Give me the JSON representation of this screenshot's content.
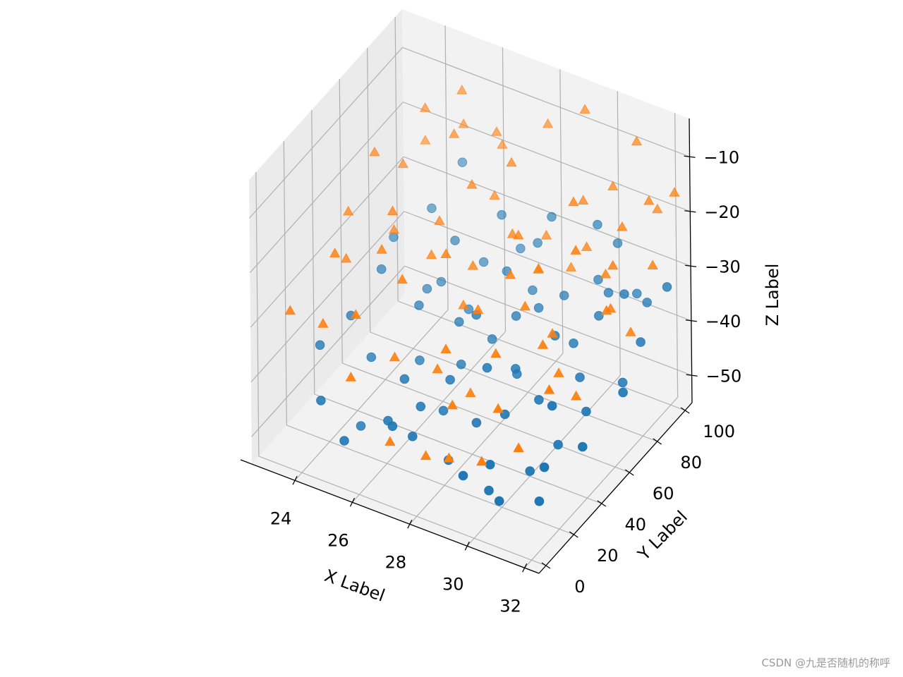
{
  "chart_data": {
    "type": "scatter",
    "projection": "3d",
    "xlabel": "X Label",
    "ylabel": "Y Label",
    "zlabel": "Z Label",
    "xlim": [
      22.5,
      32.5
    ],
    "ylim": [
      -5,
      105
    ],
    "zlim": [
      -55,
      -3
    ],
    "xticks": [
      24,
      26,
      28,
      30,
      32
    ],
    "yticks": [
      0,
      20,
      40,
      60,
      80,
      100
    ],
    "zticks": [
      -10,
      -20,
      -30,
      -40,
      -50
    ],
    "xtick_labels": [
      "24",
      "26",
      "28",
      "30",
      "32"
    ],
    "ytick_labels": [
      "0",
      "20",
      "40",
      "60",
      "80",
      "100"
    ],
    "ztick_labels": [
      "−10",
      "−20",
      "−30",
      "−40",
      "−50"
    ],
    "grid": true,
    "series": [
      {
        "marker": "circle",
        "color": "#1f77b4",
        "points": [
          [
            23.3,
            28,
            -41
          ],
          [
            24.1,
            12,
            -45
          ],
          [
            24.4,
            42,
            -45
          ],
          [
            25.9,
            35,
            -44
          ],
          [
            25.6,
            52,
            -46
          ],
          [
            26.3,
            18,
            -47
          ],
          [
            26.7,
            30,
            -46
          ],
          [
            26.9,
            55,
            -45
          ],
          [
            27.1,
            43,
            -44
          ],
          [
            27.5,
            65,
            -42
          ],
          [
            26.0,
            90,
            -38
          ],
          [
            24.9,
            72,
            -40
          ],
          [
            23.8,
            40,
            -38
          ],
          [
            25.1,
            78,
            -40
          ],
          [
            26.5,
            62,
            -40
          ],
          [
            27.8,
            88,
            -39
          ],
          [
            28.1,
            70,
            -38
          ],
          [
            28.8,
            55,
            -42
          ],
          [
            29.2,
            39,
            -45
          ],
          [
            30.0,
            47,
            -43
          ],
          [
            29.6,
            20,
            -48
          ],
          [
            30.3,
            12,
            -51
          ],
          [
            30.8,
            60,
            -41
          ],
          [
            31.2,
            26,
            -47
          ],
          [
            31.6,
            14,
            -49
          ],
          [
            32.1,
            35,
            -44
          ],
          [
            31.9,
            68,
            -42
          ],
          [
            32.4,
            58,
            -40
          ],
          [
            30.5,
            80,
            -36
          ],
          [
            29.9,
            92,
            -34
          ],
          [
            31.1,
            95,
            -35
          ],
          [
            29.0,
            86,
            -37
          ],
          [
            27.6,
            96,
            -33
          ],
          [
            26.9,
            98,
            -36
          ],
          [
            28.5,
            78,
            -38
          ],
          [
            30.1,
            70,
            -39
          ],
          [
            28.3,
            45,
            -40
          ],
          [
            27.0,
            40,
            -49
          ],
          [
            25.8,
            25,
            -49
          ],
          [
            24.7,
            28,
            -53
          ],
          [
            27.9,
            25,
            -52
          ],
          [
            29.4,
            23,
            -54
          ],
          [
            31.0,
            36,
            -39
          ],
          [
            28.7,
            58,
            -44
          ],
          [
            26.2,
            75,
            -42
          ],
          [
            23.6,
            75,
            -34
          ],
          [
            24.3,
            88,
            -31
          ],
          [
            25.4,
            82,
            -33
          ],
          [
            27.2,
            82,
            -35
          ],
          [
            30.6,
            85,
            -33
          ],
          [
            31.7,
            90,
            -34
          ],
          [
            32.2,
            75,
            -36
          ],
          [
            31.5,
            50,
            -43
          ],
          [
            30.4,
            32,
            -51
          ],
          [
            28.4,
            35,
            -47
          ],
          [
            26.8,
            22,
            -49
          ],
          [
            25.2,
            60,
            -39
          ],
          [
            29.7,
            65,
            -37
          ],
          [
            27.3,
            58,
            -36
          ],
          [
            30.9,
            42,
            -48
          ],
          [
            28.9,
            15,
            -50
          ],
          [
            25.0,
            10,
            -50
          ],
          [
            23.9,
            60,
            -35
          ],
          [
            32.5,
            88,
            -29
          ],
          [
            31.3,
            82,
            -31
          ],
          [
            30.2,
            100,
            -29
          ],
          [
            29.5,
            100,
            -27
          ],
          [
            28.0,
            98,
            -28
          ],
          [
            26.4,
            95,
            -30
          ],
          [
            24.8,
            100,
            -25
          ]
        ]
      },
      {
        "marker": "triangle",
        "color": "#ff7f0e",
        "points": [
          [
            23.4,
            5,
            -28
          ],
          [
            24.0,
            25,
            -22
          ],
          [
            25.2,
            15,
            -28
          ],
          [
            26.1,
            30,
            -24
          ],
          [
            26.9,
            45,
            -22
          ],
          [
            27.7,
            28,
            -33
          ],
          [
            28.4,
            18,
            -39
          ],
          [
            29.1,
            35,
            -33
          ],
          [
            29.8,
            22,
            -38
          ],
          [
            30.5,
            40,
            -30
          ],
          [
            31.2,
            30,
            -34
          ],
          [
            32.0,
            55,
            -25
          ],
          [
            31.5,
            70,
            -22
          ],
          [
            30.7,
            60,
            -18
          ],
          [
            29.9,
            75,
            -15
          ],
          [
            28.6,
            62,
            -20
          ],
          [
            27.5,
            80,
            -14
          ],
          [
            26.6,
            70,
            -17
          ],
          [
            25.3,
            90,
            -8
          ],
          [
            24.5,
            80,
            -10
          ],
          [
            23.7,
            60,
            -14
          ],
          [
            24.9,
            48,
            -19
          ],
          [
            25.9,
            55,
            -27
          ],
          [
            27.1,
            60,
            -28
          ],
          [
            28.0,
            45,
            -30
          ],
          [
            28.8,
            52,
            -24
          ],
          [
            29.6,
            88,
            -19
          ],
          [
            30.3,
            95,
            -17
          ],
          [
            31.1,
            85,
            -20
          ],
          [
            32.3,
            98,
            -15
          ],
          [
            31.7,
            92,
            -16
          ],
          [
            30.9,
            100,
            -9
          ],
          [
            29.2,
            98,
            -6
          ],
          [
            27.8,
            100,
            -12
          ],
          [
            26.4,
            92,
            -14
          ],
          [
            25.6,
            78,
            -12
          ],
          [
            24.2,
            70,
            -18
          ],
          [
            23.9,
            35,
            -26
          ],
          [
            25.0,
            38,
            -23
          ],
          [
            26.3,
            20,
            -35
          ],
          [
            27.3,
            30,
            -38
          ],
          [
            28.2,
            35,
            -42
          ],
          [
            29.4,
            50,
            -28
          ],
          [
            30.1,
            55,
            -33
          ],
          [
            30.8,
            45,
            -36
          ],
          [
            31.8,
            62,
            -27
          ],
          [
            32.4,
            80,
            -23
          ],
          [
            31.0,
            75,
            -26
          ],
          [
            29.0,
            68,
            -27
          ],
          [
            27.9,
            72,
            -24
          ],
          [
            26.8,
            82,
            -22
          ],
          [
            25.7,
            65,
            -24
          ],
          [
            24.6,
            55,
            -25
          ],
          [
            23.5,
            45,
            -21
          ],
          [
            24.3,
            10,
            -30
          ],
          [
            25.5,
            5,
            -36
          ],
          [
            26.6,
            10,
            -47
          ],
          [
            27.6,
            15,
            -49
          ],
          [
            28.9,
            5,
            -44
          ],
          [
            29.7,
            12,
            -45
          ],
          [
            30.6,
            20,
            -43
          ],
          [
            31.4,
            45,
            -39
          ],
          [
            32.1,
            70,
            -33
          ],
          [
            29.3,
            85,
            -31
          ],
          [
            28.3,
            88,
            -28
          ],
          [
            26.2,
            100,
            -19
          ],
          [
            25.1,
            95,
            -16
          ],
          [
            24.1,
            88,
            -19
          ],
          [
            27.0,
            55,
            -34
          ],
          [
            28.5,
            78,
            -31
          ],
          [
            30.0,
            82,
            -25
          ],
          [
            31.6,
            100,
            -20
          ]
        ]
      }
    ]
  },
  "watermark": "CSDN @九是否随机的称呼"
}
